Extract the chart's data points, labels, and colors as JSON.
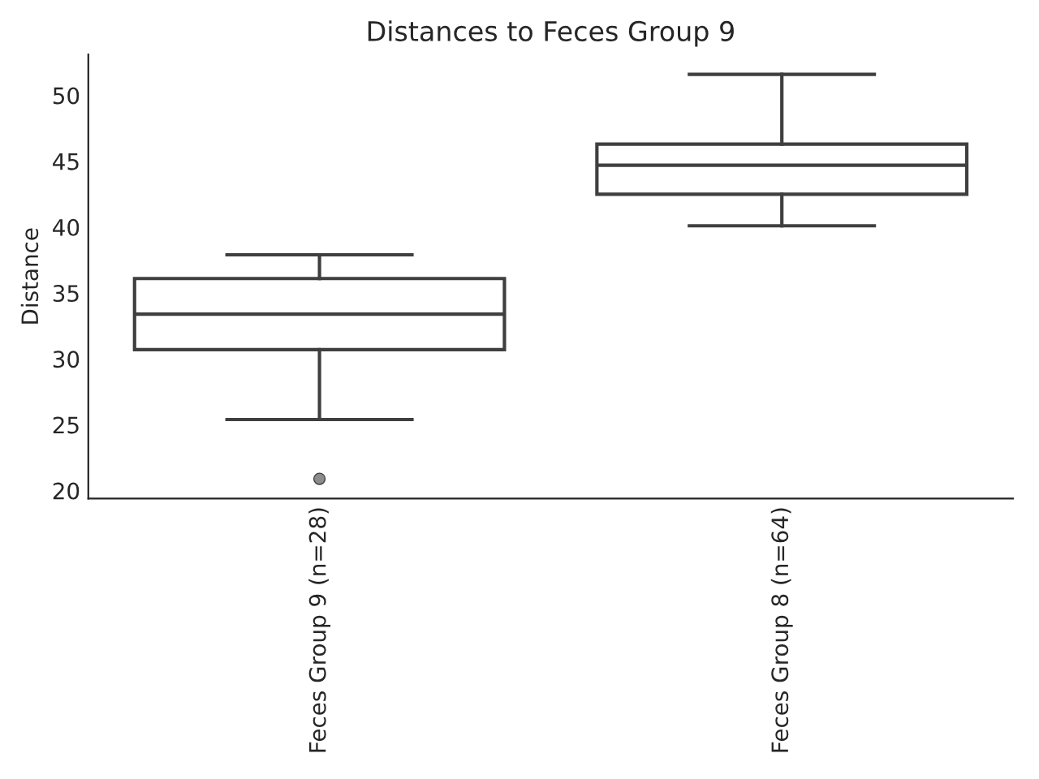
{
  "chart_data": {
    "type": "box",
    "title": "Distances to Feces Group 9",
    "ylabel": "Distance",
    "categories": [
      "Feces Group 9 (n=28)",
      "Feces Group 8 (n=64)"
    ],
    "boxes": [
      {
        "low": 25.4,
        "q1": 30.7,
        "median": 33.4,
        "q3": 36.1,
        "high": 37.9,
        "outliers": [
          20.9
        ]
      },
      {
        "low": 40.1,
        "q1": 42.5,
        "median": 44.7,
        "q3": 46.3,
        "high": 51.6
      }
    ],
    "color": "#3f3f3f",
    "ylim": [
      19.4,
      53.1
    ],
    "yticks": [
      20,
      25,
      30,
      35,
      40,
      45,
      50
    ],
    "grid": false,
    "legend": false
  }
}
